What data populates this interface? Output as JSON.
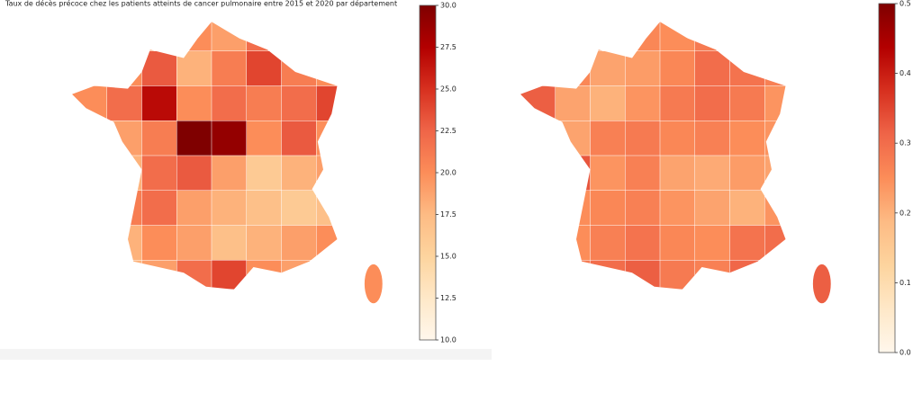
{
  "maps": [
    {
      "title": "Taux de décès précoce chez les patients atteints de cancer pulmonaire entre 2015 et 2020 par département",
      "colors": [
        "#fff7ec",
        "#fee8c8",
        "#fdd49e",
        "#fdbb84",
        "#fc8d59",
        "#ef6548",
        "#d7301f",
        "#b30000",
        "#7f0000"
      ],
      "values": [
        18,
        18,
        19,
        20,
        19,
        22,
        20,
        19,
        19,
        20,
        23,
        18,
        21,
        24,
        21,
        20,
        20,
        22,
        27,
        20,
        22,
        21,
        22,
        24,
        18,
        19,
        21,
        30,
        29,
        20,
        23,
        20,
        19,
        18,
        22,
        23,
        19,
        16,
        18,
        19,
        18,
        21,
        22,
        19,
        18,
        17,
        16,
        17,
        17,
        18,
        20,
        19,
        17,
        18,
        19,
        20,
        17,
        18,
        19,
        22,
        24,
        20,
        19,
        18,
        20
      ],
      "clim": [
        10,
        30
      ],
      "cticks": [
        {
          "value": 10,
          "label": "10.0"
        },
        12.5,
        {
          "value": 15,
          "label": "15.0"
        },
        17.5,
        {
          "value": 20,
          "label": "20.0"
        },
        22.5,
        {
          "value": 25,
          "label": "25.0"
        },
        27.5,
        {
          "value": 30,
          "label": "30.0"
        }
      ]
    },
    {
      "colors": [
        "#fff7ec",
        "#fee8c8",
        "#fdd49e",
        "#fdbb84",
        "#fc8d59",
        "#ef6548",
        "#d7301f",
        "#b30000",
        "#7f0000"
      ],
      "values": [
        0.24,
        0.25,
        0.24,
        0.26,
        0.25,
        0.28,
        0.26,
        0.24,
        0.3,
        0.26,
        0.22,
        0.23,
        0.26,
        0.3,
        0.29,
        0.27,
        0.32,
        0.22,
        0.2,
        0.24,
        0.28,
        0.3,
        0.28,
        0.24,
        0.24,
        0.22,
        0.27,
        0.28,
        0.26,
        0.27,
        0.25,
        0.24,
        0.28,
        0.33,
        0.24,
        0.27,
        0.22,
        0.21,
        0.23,
        0.22,
        0.28,
        0.25,
        0.26,
        0.27,
        0.24,
        0.22,
        0.2,
        0.24,
        0.26,
        0.25,
        0.27,
        0.29,
        0.26,
        0.25,
        0.29,
        0.3,
        0.25,
        0.28,
        0.3,
        0.32,
        0.28,
        0.27,
        0.31,
        0.3,
        0.32
      ],
      "clim": [
        0,
        0.5
      ],
      "cticks": [
        {
          "value": 0,
          "label": "0.0"
        },
        0.1,
        0.2,
        0.3,
        0.4,
        0.5
      ]
    }
  ]
}
